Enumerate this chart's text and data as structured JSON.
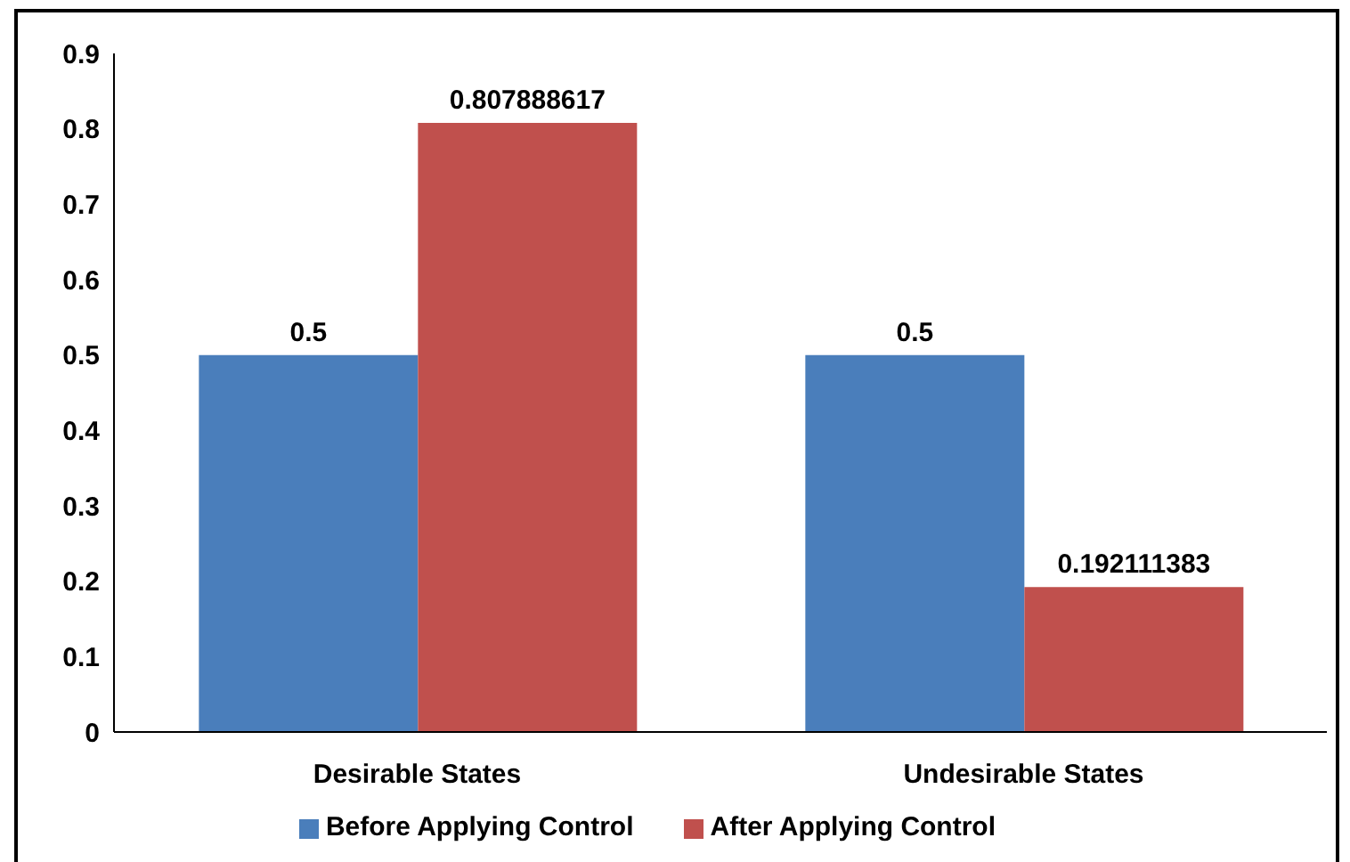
{
  "chart_data": {
    "type": "bar",
    "categories": [
      "Desirable States",
      "Undesirable States"
    ],
    "series": [
      {
        "name": "Before Applying Control",
        "color": "#4a7ebb",
        "values": [
          0.5,
          0.5
        ]
      },
      {
        "name": "After Applying Control",
        "color": "#c0504d",
        "values": [
          0.807888617,
          0.192111383
        ]
      }
    ],
    "ylim": [
      0,
      0.9
    ],
    "yticks": [
      0,
      0.1,
      0.2,
      0.3,
      0.4,
      0.5,
      0.6,
      0.7,
      0.8,
      0.9
    ],
    "data_labels": true,
    "legend": "bottom",
    "grid": false
  }
}
